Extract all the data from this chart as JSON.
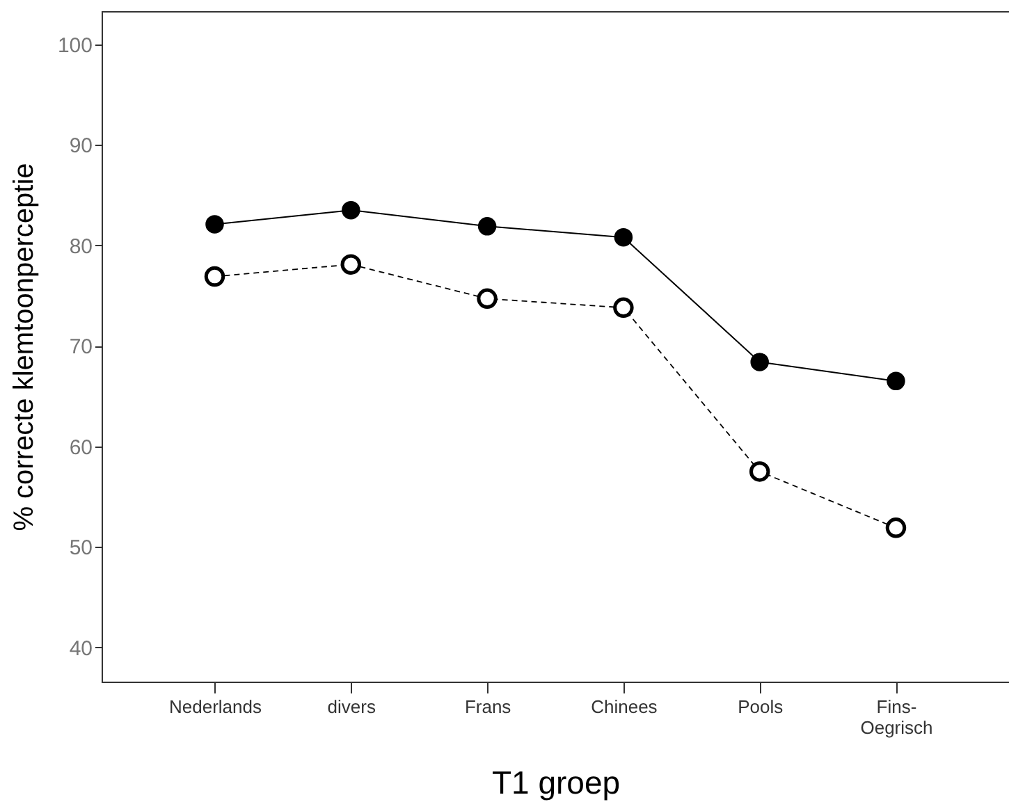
{
  "chart_data": {
    "type": "line",
    "xlabel": "T1 groep",
    "ylabel": "% correcte klemtoonperceptie",
    "categories": [
      "Nederlands",
      "divers",
      "Frans",
      "Chinees",
      "Pools",
      "Fins-Oegrisch"
    ],
    "series": [
      {
        "color": "#000000",
        "line_style": "solid",
        "values": [
          82.1,
          83.5,
          81.9,
          80.8,
          68.4,
          66.5
        ]
      },
      {
        "color": "#000000",
        "line_style": "dashed",
        "values": [
          76.9,
          78.1,
          74.7,
          73.8,
          57.5,
          51.9
        ]
      }
    ],
    "ylim": [
      36.6,
      103.3
    ],
    "yticks": [
      40,
      50,
      60,
      70,
      80,
      90,
      100
    ],
    "marker": "circle"
  }
}
